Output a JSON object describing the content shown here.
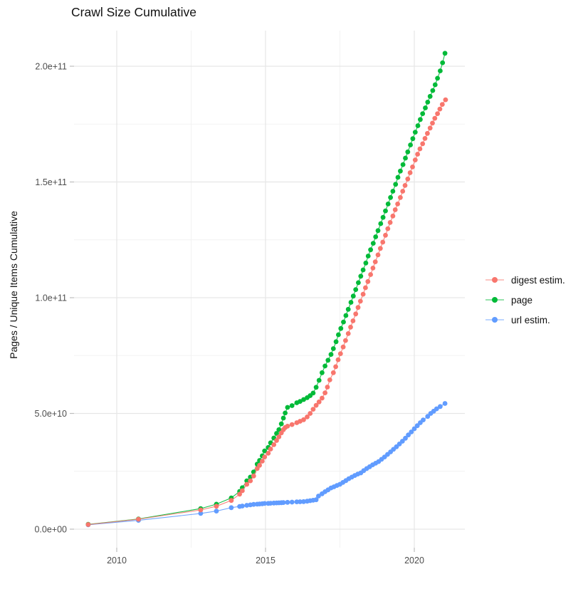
{
  "chart_data": {
    "type": "line",
    "title": "Crawl Size Cumulative",
    "xlabel": "",
    "ylabel": "Pages / Unique Items Cumulative",
    "legend_position": "right",
    "grid": true,
    "background": "#ffffff",
    "unit_note": "point values given as [decimal_year, billions_of_items]; 50 billions = 5.0e+10",
    "x_ticks": {
      "values": [
        2010,
        2015,
        2020
      ],
      "labels": [
        "2010",
        "2015",
        "2020"
      ],
      "minor": [
        2012.5,
        2017.5
      ]
    },
    "y_ticks": {
      "values_billions": [
        0,
        50,
        100,
        150,
        200
      ],
      "labels": [
        "0.0e+00",
        "5.0e+10",
        "1.0e+11",
        "1.5e+11",
        "2.0e+11"
      ],
      "minor_billions": [
        25,
        75,
        125,
        175
      ]
    },
    "x_domain": [
      2008.56,
      2021.7
    ],
    "y_domain_billions": [
      -8,
      215.4
    ],
    "series": [
      {
        "name": "digest estim.",
        "color": "#F8766D",
        "points": [
          [
            2009.04,
            2.0
          ],
          [
            2010.73,
            4.3
          ],
          [
            2012.82,
            8.3
          ],
          [
            2013.35,
            9.9
          ],
          [
            2013.85,
            12.4
          ],
          [
            2014.13,
            15.1
          ],
          [
            2014.22,
            16.6
          ],
          [
            2014.37,
            19.4
          ],
          [
            2014.49,
            20.9
          ],
          [
            2014.6,
            23.0
          ],
          [
            2014.72,
            26.2
          ],
          [
            2014.8,
            27.6
          ],
          [
            2014.89,
            29.4
          ],
          [
            2014.97,
            31.2
          ],
          [
            2015.09,
            32.8
          ],
          [
            2015.17,
            34.6
          ],
          [
            2015.28,
            36.5
          ],
          [
            2015.37,
            38.3
          ],
          [
            2015.45,
            39.9
          ],
          [
            2015.53,
            41.6
          ],
          [
            2015.6,
            43.0
          ],
          [
            2015.66,
            43.9
          ],
          [
            2015.74,
            44.5
          ],
          [
            2015.89,
            45.2
          ],
          [
            2016.05,
            46.0
          ],
          [
            2016.16,
            46.6
          ],
          [
            2016.28,
            47.3
          ],
          [
            2016.4,
            48.5
          ],
          [
            2016.5,
            50.0
          ],
          [
            2016.6,
            51.8
          ],
          [
            2016.7,
            53.5
          ],
          [
            2016.8,
            55.0
          ],
          [
            2016.9,
            56.6
          ],
          [
            2017.0,
            58.9
          ],
          [
            2017.08,
            61.4
          ],
          [
            2017.16,
            64.5
          ],
          [
            2017.28,
            67.6
          ],
          [
            2017.36,
            70.2
          ],
          [
            2017.44,
            73.2
          ],
          [
            2017.52,
            75.8
          ],
          [
            2017.61,
            78.7
          ],
          [
            2017.69,
            81.5
          ],
          [
            2017.78,
            84.5
          ],
          [
            2017.86,
            87.3
          ],
          [
            2017.94,
            90.0
          ],
          [
            2018.03,
            93.0
          ],
          [
            2018.11,
            95.8
          ],
          [
            2018.19,
            98.5
          ],
          [
            2018.28,
            101.5
          ],
          [
            2018.36,
            104.3
          ],
          [
            2018.44,
            107.0
          ],
          [
            2018.53,
            110.0
          ],
          [
            2018.61,
            112.8
          ],
          [
            2018.69,
            115.5
          ],
          [
            2018.78,
            118.5
          ],
          [
            2018.86,
            121.3
          ],
          [
            2018.94,
            124.0
          ],
          [
            2019.03,
            127.0
          ],
          [
            2019.11,
            129.8
          ],
          [
            2019.19,
            132.5
          ],
          [
            2019.28,
            135.3
          ],
          [
            2019.36,
            138.0
          ],
          [
            2019.44,
            140.5
          ],
          [
            2019.53,
            143.3
          ],
          [
            2019.61,
            146.0
          ],
          [
            2019.69,
            148.5
          ],
          [
            2019.78,
            151.3
          ],
          [
            2019.86,
            154.0
          ],
          [
            2019.94,
            156.5
          ],
          [
            2020.03,
            159.5
          ],
          [
            2020.11,
            162.0
          ],
          [
            2020.19,
            164.3
          ],
          [
            2020.28,
            166.5
          ],
          [
            2020.36,
            168.8
          ],
          [
            2020.44,
            171.0
          ],
          [
            2020.53,
            173.3
          ],
          [
            2020.61,
            175.4
          ],
          [
            2020.69,
            177.5
          ],
          [
            2020.78,
            179.5
          ],
          [
            2020.86,
            181.5
          ],
          [
            2020.94,
            183.5
          ],
          [
            2021.05,
            185.5
          ]
        ]
      },
      {
        "name": "page",
        "color": "#00BA38",
        "points": [
          [
            2009.04,
            2.1
          ],
          [
            2010.73,
            4.4
          ],
          [
            2012.82,
            8.9
          ],
          [
            2013.35,
            10.8
          ],
          [
            2013.85,
            13.5
          ],
          [
            2014.13,
            16.3
          ],
          [
            2014.22,
            17.9
          ],
          [
            2014.37,
            20.9
          ],
          [
            2014.49,
            22.5
          ],
          [
            2014.6,
            24.7
          ],
          [
            2014.72,
            28.1
          ],
          [
            2014.8,
            29.7
          ],
          [
            2014.89,
            31.7
          ],
          [
            2014.97,
            33.8
          ],
          [
            2015.09,
            35.3
          ],
          [
            2015.17,
            37.3
          ],
          [
            2015.28,
            39.4
          ],
          [
            2015.37,
            41.4
          ],
          [
            2015.45,
            43.0
          ],
          [
            2015.53,
            45.5
          ],
          [
            2015.6,
            48.0
          ],
          [
            2015.66,
            50.2
          ],
          [
            2015.74,
            52.6
          ],
          [
            2015.89,
            53.4
          ],
          [
            2016.05,
            54.6
          ],
          [
            2016.16,
            55.2
          ],
          [
            2016.28,
            56.0
          ],
          [
            2016.4,
            56.8
          ],
          [
            2016.5,
            57.7
          ],
          [
            2016.6,
            58.8
          ],
          [
            2016.7,
            61.3
          ],
          [
            2016.8,
            64.3
          ],
          [
            2016.9,
            67.6
          ],
          [
            2017.0,
            70.5
          ],
          [
            2017.1,
            73.0
          ],
          [
            2017.2,
            75.5
          ],
          [
            2017.28,
            78.0
          ],
          [
            2017.37,
            81.0
          ],
          [
            2017.45,
            84.0
          ],
          [
            2017.53,
            86.7
          ],
          [
            2017.62,
            89.5
          ],
          [
            2017.7,
            92.3
          ],
          [
            2017.78,
            95.0
          ],
          [
            2017.87,
            98.0
          ],
          [
            2017.95,
            100.7
          ],
          [
            2018.03,
            103.5
          ],
          [
            2018.12,
            106.5
          ],
          [
            2018.2,
            109.3
          ],
          [
            2018.28,
            112.0
          ],
          [
            2018.37,
            115.0
          ],
          [
            2018.45,
            118.0
          ],
          [
            2018.53,
            120.7
          ],
          [
            2018.62,
            123.5
          ],
          [
            2018.7,
            126.3
          ],
          [
            2018.78,
            129.0
          ],
          [
            2018.87,
            132.0
          ],
          [
            2018.95,
            134.7
          ],
          [
            2019.03,
            137.5
          ],
          [
            2019.12,
            140.5
          ],
          [
            2019.2,
            143.3
          ],
          [
            2019.28,
            146.0
          ],
          [
            2019.37,
            149.0
          ],
          [
            2019.45,
            152.0
          ],
          [
            2019.53,
            154.7
          ],
          [
            2019.62,
            157.5
          ],
          [
            2019.7,
            160.3
          ],
          [
            2019.78,
            163.0
          ],
          [
            2019.87,
            166.0
          ],
          [
            2019.95,
            168.7
          ],
          [
            2020.03,
            171.5
          ],
          [
            2020.12,
            174.3
          ],
          [
            2020.2,
            177.0
          ],
          [
            2020.28,
            179.5
          ],
          [
            2020.37,
            182.0
          ],
          [
            2020.45,
            184.5
          ],
          [
            2020.53,
            187.0
          ],
          [
            2020.62,
            189.5
          ],
          [
            2020.7,
            192.0
          ],
          [
            2020.78,
            194.8
          ],
          [
            2020.87,
            198.0
          ],
          [
            2020.95,
            201.5
          ],
          [
            2021.03,
            205.6
          ]
        ]
      },
      {
        "name": "url estim.",
        "color": "#619CFF",
        "points": [
          [
            2009.04,
            1.9
          ],
          [
            2010.73,
            3.8
          ],
          [
            2012.82,
            6.8
          ],
          [
            2013.35,
            7.8
          ],
          [
            2013.85,
            9.3
          ],
          [
            2014.13,
            9.8
          ],
          [
            2014.22,
            10.0
          ],
          [
            2014.37,
            10.3
          ],
          [
            2014.49,
            10.5
          ],
          [
            2014.6,
            10.7
          ],
          [
            2014.72,
            10.8
          ],
          [
            2014.8,
            10.9
          ],
          [
            2014.89,
            11.0
          ],
          [
            2014.97,
            11.1
          ],
          [
            2015.09,
            11.15
          ],
          [
            2015.17,
            11.2
          ],
          [
            2015.28,
            11.3
          ],
          [
            2015.37,
            11.35
          ],
          [
            2015.45,
            11.4
          ],
          [
            2015.53,
            11.45
          ],
          [
            2015.6,
            11.5
          ],
          [
            2015.74,
            11.6
          ],
          [
            2015.89,
            11.7
          ],
          [
            2016.05,
            11.8
          ],
          [
            2016.16,
            11.85
          ],
          [
            2016.28,
            11.9
          ],
          [
            2016.4,
            12.1
          ],
          [
            2016.5,
            12.3
          ],
          [
            2016.6,
            12.5
          ],
          [
            2016.7,
            12.7
          ],
          [
            2016.78,
            14.3
          ],
          [
            2016.9,
            15.3
          ],
          [
            2017.0,
            16.2
          ],
          [
            2017.1,
            17.0
          ],
          [
            2017.2,
            17.8
          ],
          [
            2017.3,
            18.3
          ],
          [
            2017.4,
            18.9
          ],
          [
            2017.5,
            19.4
          ],
          [
            2017.6,
            20.2
          ],
          [
            2017.7,
            21.0
          ],
          [
            2017.8,
            21.8
          ],
          [
            2017.9,
            22.5
          ],
          [
            2018.0,
            23.2
          ],
          [
            2018.1,
            23.8
          ],
          [
            2018.2,
            24.3
          ],
          [
            2018.3,
            25.3
          ],
          [
            2018.4,
            26.2
          ],
          [
            2018.5,
            27.0
          ],
          [
            2018.6,
            27.8
          ],
          [
            2018.7,
            28.5
          ],
          [
            2018.8,
            29.2
          ],
          [
            2018.9,
            30.2
          ],
          [
            2019.0,
            31.2
          ],
          [
            2019.1,
            32.3
          ],
          [
            2019.2,
            33.4
          ],
          [
            2019.3,
            34.5
          ],
          [
            2019.4,
            35.6
          ],
          [
            2019.5,
            36.8
          ],
          [
            2019.6,
            38.0
          ],
          [
            2019.7,
            39.3
          ],
          [
            2019.8,
            40.7
          ],
          [
            2019.9,
            42.0
          ],
          [
            2020.0,
            43.4
          ],
          [
            2020.1,
            44.7
          ],
          [
            2020.2,
            46.0
          ],
          [
            2020.3,
            47.2
          ],
          [
            2020.45,
            48.7
          ],
          [
            2020.55,
            50.0
          ],
          [
            2020.65,
            51.0
          ],
          [
            2020.75,
            52.0
          ],
          [
            2020.87,
            53.0
          ],
          [
            2021.03,
            54.3
          ]
        ]
      }
    ]
  },
  "style_colors": {
    "grid_major": "#E6E6E6",
    "grid_minor": "#F2F2F2",
    "tick_mark": "#BDBDBD",
    "tick_text": "#4D4D4D",
    "text": "#111111"
  }
}
